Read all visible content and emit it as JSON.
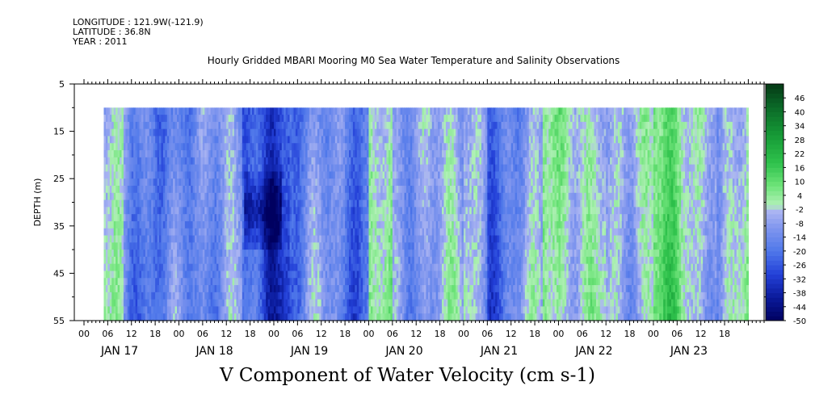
{
  "header": {
    "longitude": "LONGITUDE : 121.9W(-121.9)",
    "latitude": "LATITUDE : 36.8N",
    "year": "YEAR : 2011",
    "title": "Hourly Gridded MBARI Mooring M0 Sea Water Temperature and Salinity Observations"
  },
  "chart_data": {
    "type": "heatmap",
    "title": "V Component of Water Velocity (cm s-1)",
    "ylabel": "DEPTH (m)",
    "y_ticks": [
      "5",
      "15",
      "25",
      "35",
      "45",
      "55"
    ],
    "ylim": [
      5,
      55
    ],
    "data_depth_range": [
      10,
      55
    ],
    "data_time_range_hours": [
      5,
      168
    ],
    "x_hour_ticks": [
      "00",
      "06",
      "12",
      "18",
      "00",
      "06",
      "12",
      "18",
      "00",
      "06",
      "12",
      "18",
      "00",
      "06",
      "12",
      "18",
      "00",
      "06",
      "12",
      "18",
      "00",
      "06",
      "12",
      "18",
      "00",
      "06",
      "12",
      "18"
    ],
    "x_day_labels": [
      "JAN 17",
      "JAN 18",
      "JAN 19",
      "JAN 20",
      "JAN 21",
      "JAN 22",
      "JAN 23"
    ],
    "colorbar": {
      "labels": [
        "46",
        "40",
        "34",
        "28",
        "22",
        "16",
        "10",
        "4",
        "-2",
        "-8",
        "-14",
        "-20",
        "-26",
        "-32",
        "-38",
        "-44",
        "-50"
      ],
      "range": [
        -50,
        52
      ]
    },
    "regimes": [
      {
        "start_hour": 5,
        "end_hour": 10,
        "mean_value": -8
      },
      {
        "start_hour": 10,
        "end_hour": 40,
        "mean_value": -14
      },
      {
        "start_hour": 40,
        "end_hour": 52,
        "mean_value": -24
      },
      {
        "start_hour": 52,
        "end_hour": 72,
        "mean_value": -18
      },
      {
        "start_hour": 72,
        "end_hour": 78,
        "mean_value": 4
      },
      {
        "start_hour": 78,
        "end_hour": 96,
        "mean_value": -10
      },
      {
        "start_hour": 96,
        "end_hour": 102,
        "mean_value": -2
      },
      {
        "start_hour": 102,
        "end_hour": 116,
        "mean_value": -14
      },
      {
        "start_hour": 116,
        "end_hour": 132,
        "mean_value": 2
      },
      {
        "start_hour": 132,
        "end_hour": 144,
        "mean_value": -4
      },
      {
        "start_hour": 144,
        "end_hour": 160,
        "mean_value": 4
      },
      {
        "start_hour": 160,
        "end_hour": 168,
        "mean_value": -6
      }
    ],
    "colors": {
      "strong_negative": "#101a8c",
      "negative": "#4c78e6",
      "weak_negative": "#aab4f0",
      "weak_positive": "#a8f0a8",
      "positive": "#36d45a",
      "strong_positive": "#0a4a1e"
    }
  }
}
